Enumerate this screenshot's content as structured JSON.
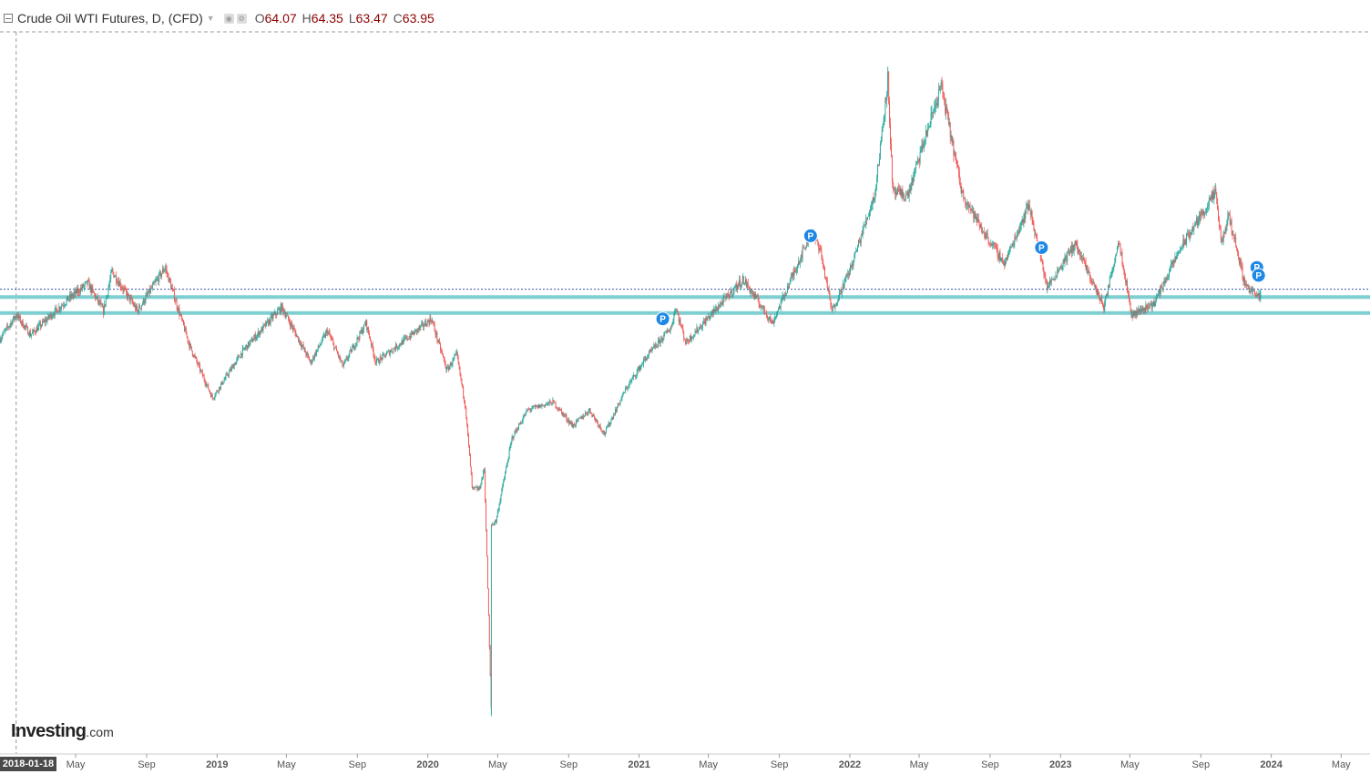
{
  "header": {
    "title": "Crude Oil WTI Futures, D, (CFD)",
    "open_label": "O",
    "open": "64.07",
    "high_label": "H",
    "high": "64.35",
    "low_label": "L",
    "low": "63.47",
    "close_label": "C",
    "close": "63.95"
  },
  "logo": {
    "brand": "Investing",
    "domain": ".com"
  },
  "cursor_date": "2018-01-18",
  "colors": {
    "up": "#26a69a",
    "down": "#ef5350",
    "support": "#7ecfd2",
    "price_line": "#3a52a8",
    "marker": "#1e88e5",
    "axis_text": "#555555",
    "grid_dash": "#999999"
  },
  "chart_data": {
    "type": "candlestick",
    "title": "Crude Oil WTI Futures, D, (CFD)",
    "x_axis_ticks": [
      "May",
      "Sep",
      "2019",
      "May",
      "Sep",
      "2020",
      "May",
      "Sep",
      "2021",
      "May",
      "Sep",
      "2022",
      "May",
      "Sep",
      "2023",
      "May",
      "Sep",
      "2024",
      "May"
    ],
    "x_tick_dates": [
      "2018-05-01",
      "2018-09-01",
      "2019-01-01",
      "2019-05-01",
      "2019-09-01",
      "2020-01-01",
      "2020-05-01",
      "2020-09-01",
      "2021-01-01",
      "2021-05-01",
      "2021-09-01",
      "2022-01-01",
      "2022-05-01",
      "2022-09-01",
      "2023-01-01",
      "2023-05-01",
      "2023-09-01",
      "2024-01-01",
      "2024-05-01"
    ],
    "y_axis_visible": false,
    "x_range": [
      "2017-12-21",
      "2024-06-20"
    ],
    "ylim": [
      -37,
      124
    ],
    "price_path": [
      [
        "2017-12-21",
        58
      ],
      [
        "2018-01-18",
        64
      ],
      [
        "2018-02-12",
        59
      ],
      [
        "2018-04-18",
        68
      ],
      [
        "2018-05-22",
        72
      ],
      [
        "2018-06-18",
        65
      ],
      [
        "2018-07-03",
        75
      ],
      [
        "2018-08-16",
        65
      ],
      [
        "2018-10-03",
        76
      ],
      [
        "2018-11-15",
        56
      ],
      [
        "2018-12-24",
        43
      ],
      [
        "2019-02-15",
        55
      ],
      [
        "2019-04-23",
        66
      ],
      [
        "2019-06-12",
        52
      ],
      [
        "2019-07-11",
        60
      ],
      [
        "2019-08-07",
        51
      ],
      [
        "2019-09-16",
        62
      ],
      [
        "2019-10-03",
        52
      ],
      [
        "2019-11-25",
        58
      ],
      [
        "2020-01-07",
        63
      ],
      [
        "2020-02-03",
        50
      ],
      [
        "2020-02-20",
        54
      ],
      [
        "2020-03-06",
        41
      ],
      [
        "2020-03-18",
        20
      ],
      [
        "2020-03-30",
        20
      ],
      [
        "2020-04-08",
        25
      ],
      [
        "2020-04-20",
        -37
      ],
      [
        "2020-04-21",
        11
      ],
      [
        "2020-04-28",
        12
      ],
      [
        "2020-05-26",
        33
      ],
      [
        "2020-06-22",
        40
      ],
      [
        "2020-08-05",
        42
      ],
      [
        "2020-09-08",
        36
      ],
      [
        "2020-10-07",
        40
      ],
      [
        "2020-11-02",
        34
      ],
      [
        "2020-12-08",
        45
      ],
      [
        "2021-01-12",
        53
      ],
      [
        "2021-02-26",
        61
      ],
      [
        "2021-03-05",
        66
      ],
      [
        "2021-03-23",
        57
      ],
      [
        "2021-05-11",
        65
      ],
      [
        "2021-06-30",
        73
      ],
      [
        "2021-08-20",
        62
      ],
      [
        "2021-10-26",
        85
      ],
      [
        "2021-11-10",
        81
      ],
      [
        "2021-12-01",
        65
      ],
      [
        "2022-01-03",
        76
      ],
      [
        "2022-02-14",
        95
      ],
      [
        "2022-03-08",
        124
      ],
      [
        "2022-03-16",
        95
      ],
      [
        "2022-04-11",
        94
      ],
      [
        "2022-06-08",
        122
      ],
      [
        "2022-07-14",
        95
      ],
      [
        "2022-08-16",
        86
      ],
      [
        "2022-09-26",
        77
      ],
      [
        "2022-11-07",
        92
      ],
      [
        "2022-12-09",
        71
      ],
      [
        "2023-01-26",
        82
      ],
      [
        "2023-03-17",
        66
      ],
      [
        "2023-04-12",
        83
      ],
      [
        "2023-05-04",
        64
      ],
      [
        "2023-06-12",
        67
      ],
      [
        "2023-07-28",
        81
      ],
      [
        "2023-09-27",
        95
      ],
      [
        "2023-10-06",
        82
      ],
      [
        "2023-10-20",
        89
      ],
      [
        "2023-11-16",
        72
      ],
      [
        "2023-12-12",
        68
      ],
      [
        "2023-12-14",
        70
      ]
    ],
    "price_line": 70.5,
    "support_lines": [
      68.5,
      64.5
    ],
    "markers": [
      {
        "label": "P",
        "date": "2021-02-11",
        "price": 63
      },
      {
        "label": "P",
        "date": "2021-10-25",
        "price": 84
      },
      {
        "label": "P",
        "date": "2022-11-29",
        "price": 81
      },
      {
        "label": "P",
        "date": "2023-12-07",
        "price": 76
      },
      {
        "label": "P",
        "date": "2023-12-10",
        "price": 74
      }
    ]
  }
}
